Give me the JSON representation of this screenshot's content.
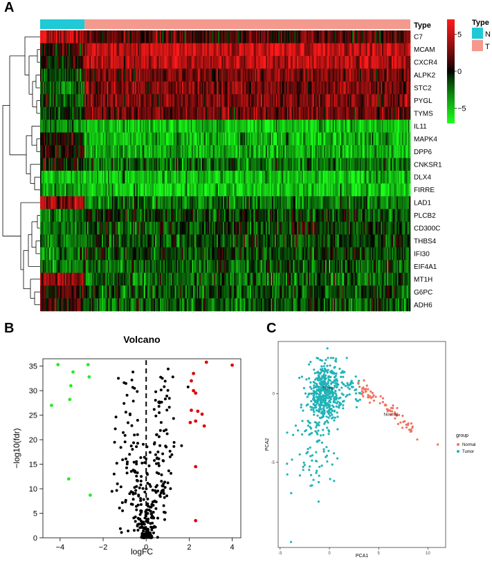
{
  "panels": {
    "a_label": "A",
    "b_label": "B",
    "c_label": "C"
  },
  "colors": {
    "type_normal": "#1fc9d5",
    "type_tumor": "#f4998d",
    "heat_high": "#ff1a1a",
    "heat_mid": "#000000",
    "heat_low": "#1aff1a",
    "volcano_up": "#e00000",
    "volcano_down": "#22ee22",
    "volcano_ns": "#000000",
    "pca_normal": "#f0715f",
    "pca_tumor": "#1fb3b8"
  },
  "chart_data": [
    {
      "type": "heatmap",
      "panel": "A",
      "annotation_title": "Type",
      "legend_title": "Type",
      "legend_items": [
        "N",
        "T"
      ],
      "colorbar_ticks": [
        5,
        0,
        -5
      ],
      "colorbar_range": [
        -7,
        7
      ],
      "normal_fraction": 0.12,
      "rows": [
        {
          "gene": "C7",
          "normal": 4.5,
          "tumor": 1.5
        },
        {
          "gene": "MCAM",
          "normal": 0.5,
          "tumor": 5.0
        },
        {
          "gene": "CXCR4",
          "normal": 0.5,
          "tumor": 4.8
        },
        {
          "gene": "ALPK2",
          "normal": -1.5,
          "tumor": 2.5
        },
        {
          "gene": "STC2",
          "normal": -2.0,
          "tumor": 2.8
        },
        {
          "gene": "PYGL",
          "normal": -1.0,
          "tumor": 2.8
        },
        {
          "gene": "TYMS",
          "normal": -0.8,
          "tumor": 2.5
        },
        {
          "gene": "IL11",
          "normal": -3.5,
          "tumor": -5.0
        },
        {
          "gene": "MAPK4",
          "normal": 0.3,
          "tumor": -4.5
        },
        {
          "gene": "DPP6",
          "normal": 0.2,
          "tumor": -4.2
        },
        {
          "gene": "CNKSR1",
          "normal": -0.3,
          "tumor": -2.5
        },
        {
          "gene": "DLX4",
          "normal": -4.5,
          "tumor": -4.8
        },
        {
          "gene": "FIRRE",
          "normal": -4.0,
          "tumor": -5.0
        },
        {
          "gene": "LAD1",
          "normal": 3.5,
          "tumor": -2.5
        },
        {
          "gene": "PLCB2",
          "normal": -2.5,
          "tumor": -1.2
        },
        {
          "gene": "CD300C",
          "normal": -2.5,
          "tumor": -1.2
        },
        {
          "gene": "THBS4",
          "normal": -2.5,
          "tumor": -1.5
        },
        {
          "gene": "IFI30",
          "normal": -2.5,
          "tumor": -1.5
        },
        {
          "gene": "EIF4A1",
          "normal": -2.5,
          "tumor": -1.8
        },
        {
          "gene": "MT1H",
          "normal": 3.0,
          "tumor": -2.0
        },
        {
          "gene": "G6PC",
          "normal": 1.0,
          "tumor": -1.8
        },
        {
          "gene": "ADH6",
          "normal": 0.5,
          "tumor": -1.8
        }
      ]
    },
    {
      "type": "scatter",
      "panel": "B",
      "title": "Volcano",
      "xlabel": "logFC",
      "ylabel": "−log10(fdr)",
      "xlim": [
        -4.8,
        4.4
      ],
      "ylim": [
        0,
        36.5
      ],
      "xticks": [
        -4,
        -2,
        0,
        2,
        4
      ],
      "yticks": [
        0,
        5,
        10,
        15,
        20,
        25,
        30,
        35
      ],
      "threshold_x": 0,
      "up_points": [
        [
          2.8,
          35.8
        ],
        [
          4.0,
          35.2
        ],
        [
          2.2,
          33.5
        ],
        [
          2.1,
          32.0
        ],
        [
          2.2,
          30.0
        ],
        [
          2.3,
          29.5
        ],
        [
          2.1,
          26.0
        ],
        [
          2.4,
          25.8
        ],
        [
          2.6,
          25.2
        ],
        [
          2.05,
          23.5
        ],
        [
          2.3,
          23.8
        ],
        [
          2.7,
          22.8
        ],
        [
          2.3,
          14.5
        ],
        [
          2.3,
          3.5
        ]
      ],
      "down_points": [
        [
          -4.1,
          35.3
        ],
        [
          -2.7,
          35.3
        ],
        [
          -3.4,
          33.8
        ],
        [
          -2.65,
          32.8
        ],
        [
          -3.5,
          31.0
        ],
        [
          -3.55,
          28.2
        ],
        [
          -4.4,
          27.0
        ],
        [
          -3.6,
          12.0
        ],
        [
          -2.6,
          8.7
        ]
      ],
      "ns_seed": 20240,
      "ns_count": 320
    },
    {
      "type": "scatter",
      "panel": "C",
      "xlabel": "PCA1",
      "ylabel": "PCA2",
      "xlim": [
        -5.2,
        11.8
      ],
      "ylim": [
        -11.2,
        3.8
      ],
      "xticks": [
        -5,
        0,
        5,
        10
      ],
      "yticks": [
        0,
        -5
      ],
      "legend_title": "group",
      "series": [
        {
          "name": "Normal",
          "label": "Normal",
          "label_at": [
            5.5,
            -1.6
          ],
          "color": "#f0715f"
        },
        {
          "name": "Tumor",
          "label": "Tumor",
          "label_at": [
            -0.7,
            0.3
          ],
          "color": "#1fb3b8"
        }
      ],
      "tumor_count": 560,
      "normal_count": 72,
      "outliers": [
        [
          11.0,
          -3.7
        ],
        [
          -0.2,
          3.3
        ],
        [
          -3.9,
          -10.8
        ],
        [
          -4.3,
          -5.1
        ]
      ]
    }
  ]
}
